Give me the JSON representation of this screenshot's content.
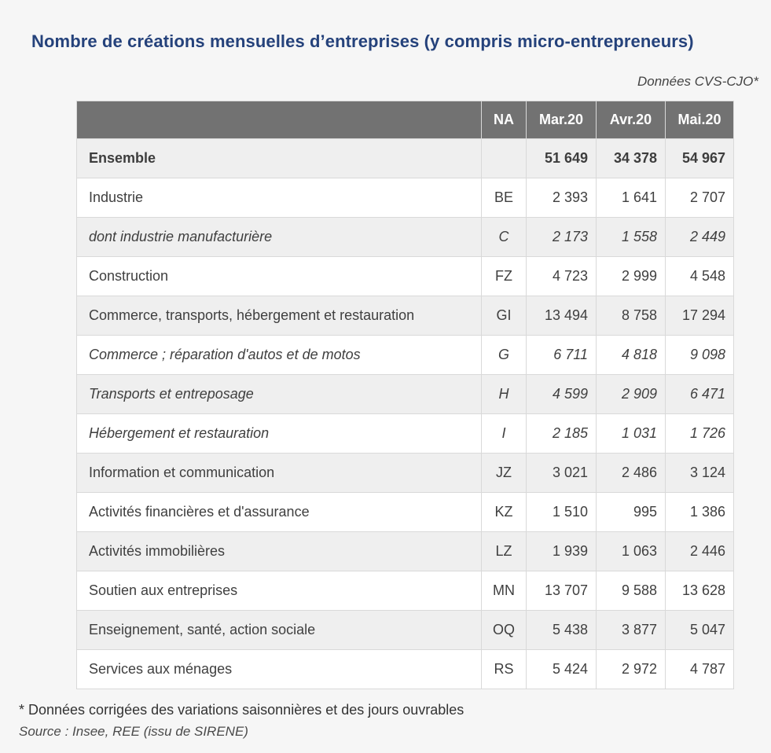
{
  "page": {
    "title": "Nombre de créations mensuelles d’entreprises (y compris micro-entrepreneurs)",
    "data_note": "Données CVS-CJO*",
    "footnote": "* Données corrigées des variations saisonnières et des jours ouvrables",
    "source": "Source : Insee, REE (issu de SIRENE)"
  },
  "colors": {
    "title_blue": "#25427b",
    "header_bg": "#727272",
    "header_text": "#ffffff",
    "row_alt_bg": "#efefef",
    "row_bg": "#ffffff",
    "border": "#d9d9d9",
    "body_text": "#3f3f3f",
    "page_bg": "#f6f6f6"
  },
  "chart_data": {
    "type": "table",
    "title": "Nombre de créations mensuelles d’entreprises (y compris micro-entrepreneurs)",
    "subtitle": "Données CVS-CJO*",
    "columns": [
      "",
      "NA",
      "Mar.20",
      "Avr.20",
      "Mai.20"
    ],
    "rows": [
      {
        "label": "Ensemble",
        "na": "",
        "values": [
          "51 649",
          "34 378",
          "54 967"
        ],
        "style": "total"
      },
      {
        "label": "Industrie",
        "na": "BE",
        "values": [
          "2 393",
          "1 641",
          "2 707"
        ],
        "style": "normal"
      },
      {
        "label": "dont industrie manufacturière",
        "na": "C",
        "values": [
          "2 173",
          "1 558",
          "2 449"
        ],
        "style": "italic"
      },
      {
        "label": "Construction",
        "na": "FZ",
        "values": [
          "4 723",
          "2 999",
          "4 548"
        ],
        "style": "normal"
      },
      {
        "label": "Commerce, transports, hébergement et restauration",
        "na": "GI",
        "values": [
          "13 494",
          "8 758",
          "17 294"
        ],
        "style": "normal"
      },
      {
        "label": "Commerce ; réparation d'autos et de motos",
        "na": "G",
        "values": [
          "6 711",
          "4 818",
          "9 098"
        ],
        "style": "italic"
      },
      {
        "label": "Transports et entreposage",
        "na": "H",
        "values": [
          "4 599",
          "2 909",
          "6 471"
        ],
        "style": "italic"
      },
      {
        "label": "Hébergement et restauration",
        "na": "I",
        "values": [
          "2 185",
          "1 031",
          "1 726"
        ],
        "style": "italic"
      },
      {
        "label": "Information et communication",
        "na": "JZ",
        "values": [
          "3 021",
          "2 486",
          "3 124"
        ],
        "style": "normal"
      },
      {
        "label": "Activités financières et d'assurance",
        "na": "KZ",
        "values": [
          "1 510",
          "995",
          "1 386"
        ],
        "style": "normal"
      },
      {
        "label": "Activités immobilières",
        "na": "LZ",
        "values": [
          "1 939",
          "1 063",
          "2 446"
        ],
        "style": "normal"
      },
      {
        "label": "Soutien aux entreprises",
        "na": "MN",
        "values": [
          "13 707",
          "9 588",
          "13 628"
        ],
        "style": "normal"
      },
      {
        "label": "Enseignement, santé, action sociale",
        "na": "OQ",
        "values": [
          "5 438",
          "3 877",
          "5 047"
        ],
        "style": "normal"
      },
      {
        "label": "Services aux ménages",
        "na": "RS",
        "values": [
          "5 424",
          "2 972",
          "4 787"
        ],
        "style": "normal"
      }
    ]
  }
}
